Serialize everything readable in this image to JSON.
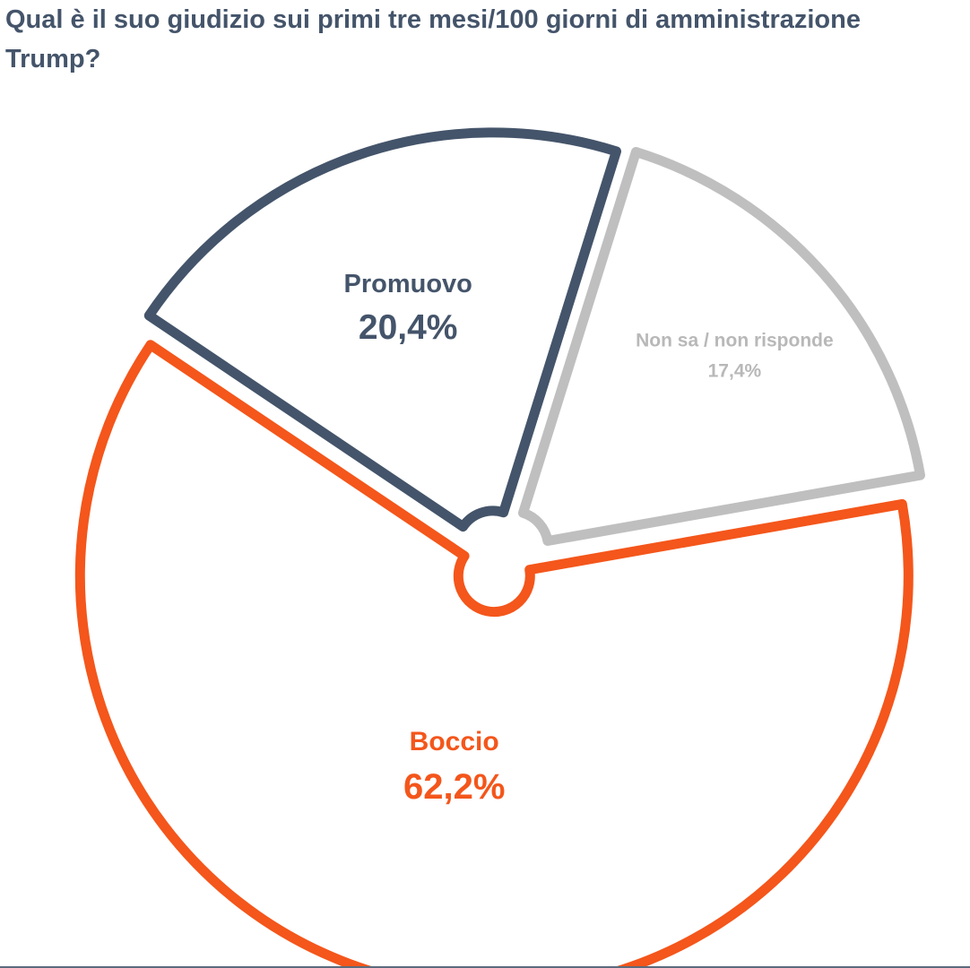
{
  "chart_data": {
    "type": "pie",
    "title": "Qual è il suo giudizio sui primi tre mesi/100 giorni di amministrazione Trump?",
    "slices": [
      {
        "label": "Boccio",
        "value": 62.2,
        "value_text": "62,2%",
        "color": "#f4561b"
      },
      {
        "label": "Promuovo",
        "value": 20.4,
        "value_text": "20,4%",
        "color": "#44546a"
      },
      {
        "label": "Non sa / non risponde",
        "value": 17.4,
        "value_text": "17,4%",
        "color": "#bfbfbf"
      }
    ],
    "legend": "none",
    "labels": "inside"
  }
}
